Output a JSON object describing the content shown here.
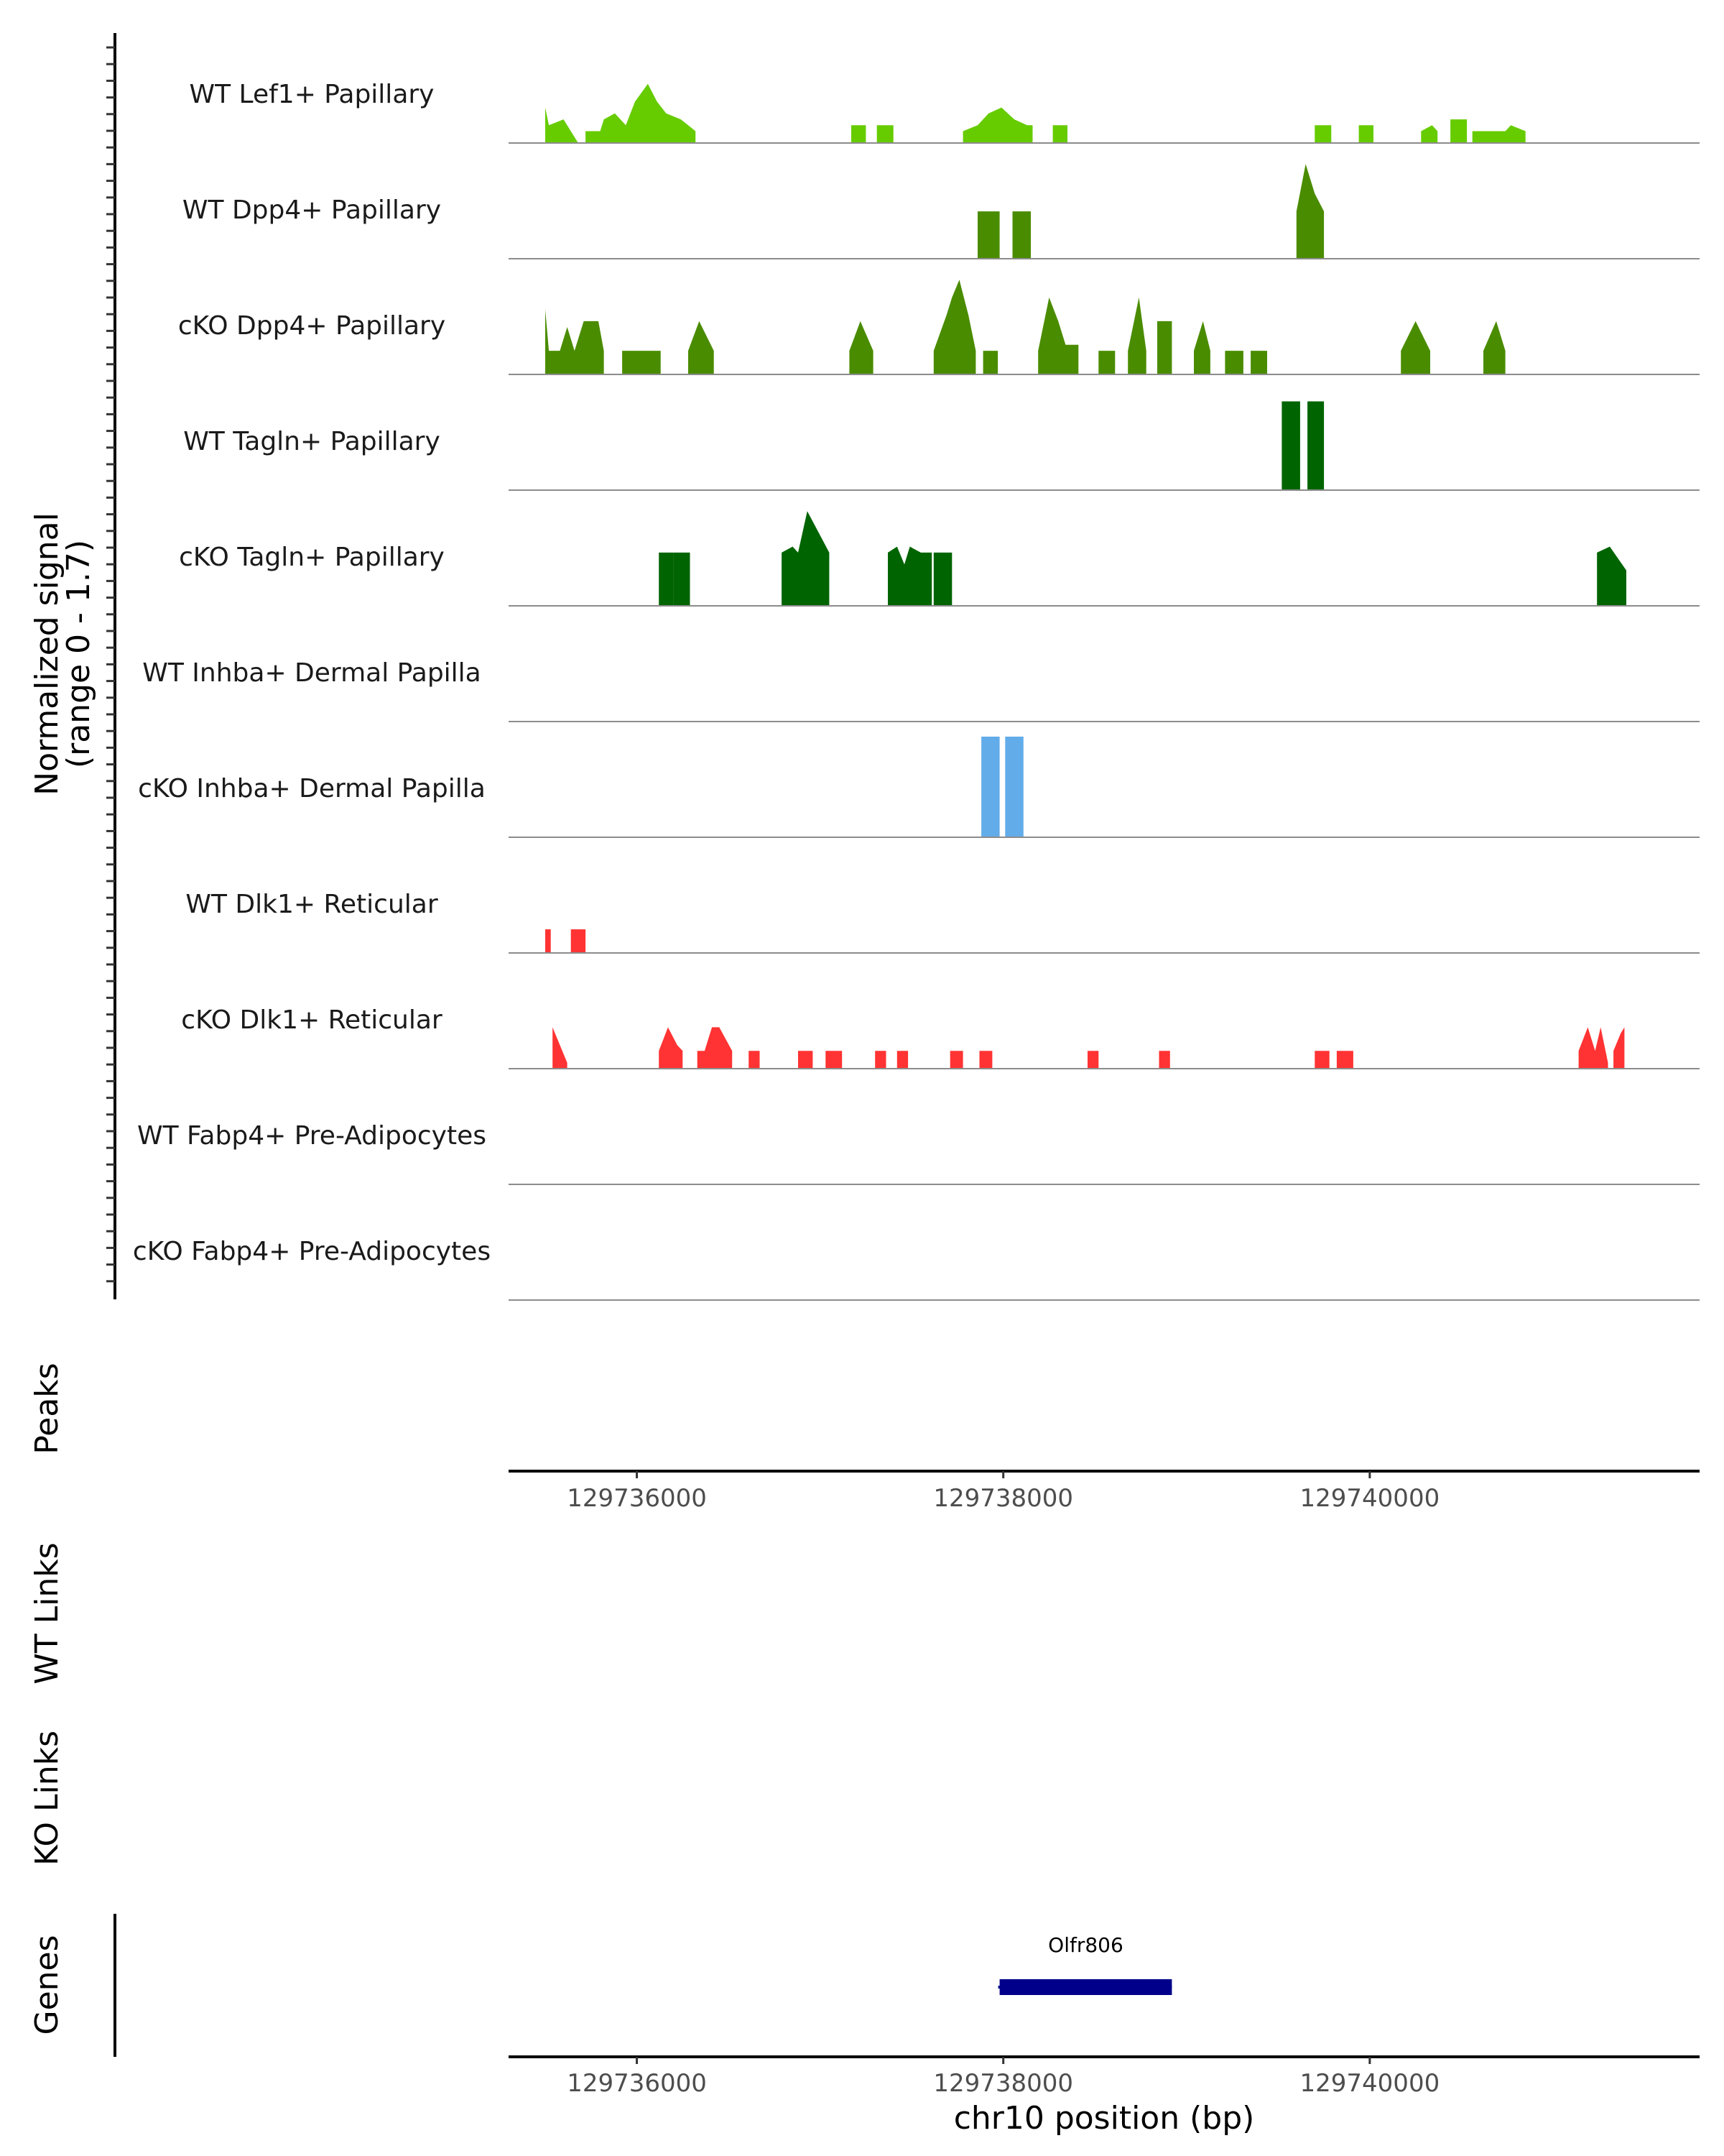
{
  "chart_data": {
    "type": "area",
    "title": "",
    "chromosome": "chr10",
    "xlabel": "chr10 position (bp)",
    "xlim": [
      129735300,
      129741800
    ],
    "x_ticks": [
      129736000,
      129738000,
      129740000
    ],
    "x_tick_labels": [
      "129736000",
      "129738000",
      "129740000"
    ],
    "coverage_ylabel_line1": "Normalized signal",
    "coverage_ylabel_line2": "(range 0 - 1.7)",
    "ylim": [
      0,
      1.7
    ],
    "panel_labels": {
      "peaks": "Peaks",
      "wt_links": "WT Links",
      "ko_links": "KO Links",
      "genes": "Genes"
    },
    "colors": {
      "lef1": "#66cc00",
      "dpp4": "#4a8c00",
      "tagln": "#006400",
      "inhba": "#63acea",
      "dlk1": "#ff3333",
      "gene": "#00008b"
    },
    "series": [
      {
        "name": "WT Lef1+ Papillary",
        "color": "#66cc00",
        "segments": [
          {
            "x": [
              129735500,
              129735520,
              129735600,
              129735680
            ],
            "y": [
              0.6,
              0.3,
              0.4,
              0.0
            ]
          },
          {
            "x": [
              129735720,
              129735800,
              129735820,
              129735880,
              129735940,
              129735990,
              129736060,
              129736110,
              129736160,
              129736240,
              129736280,
              129736320
            ],
            "y": [
              0.2,
              0.2,
              0.4,
              0.5,
              0.3,
              0.7,
              1.0,
              0.7,
              0.5,
              0.4,
              0.3,
              0.2
            ]
          },
          {
            "x": [
              129737170,
              129737250
            ],
            "y": [
              0.3,
              0.3
            ]
          },
          {
            "x": [
              129737310,
              129737400
            ],
            "y": [
              0.3,
              0.3
            ]
          },
          {
            "x": [
              129737780,
              129737860,
              129737920,
              129737990,
              129738060,
              129738130,
              129738160
            ],
            "y": [
              0.2,
              0.3,
              0.5,
              0.6,
              0.4,
              0.3,
              0.3
            ]
          },
          {
            "x": [
              129738270,
              129738350
            ],
            "y": [
              0.3,
              0.3
            ]
          },
          {
            "x": [
              129739700,
              129739790
            ],
            "y": [
              0.3,
              0.3
            ]
          },
          {
            "x": [
              129739940,
              129740020
            ],
            "y": [
              0.3,
              0.3
            ]
          },
          {
            "x": [
              129740280,
              129740340,
              129740370
            ],
            "y": [
              0.2,
              0.3,
              0.2
            ]
          },
          {
            "x": [
              129740440,
              129740530
            ],
            "y": [
              0.4,
              0.4
            ]
          },
          {
            "x": [
              129740560,
              129740740,
              129740770,
              129740850
            ],
            "y": [
              0.2,
              0.2,
              0.3,
              0.2
            ]
          }
        ]
      },
      {
        "name": "WT Dpp4+ Papillary",
        "color": "#4a8c00",
        "segments": [
          {
            "x": [
              129737860,
              129737980
            ],
            "y": [
              0.8,
              0.8
            ]
          },
          {
            "x": [
              129738050,
              129738150
            ],
            "y": [
              0.8,
              0.8
            ]
          },
          {
            "x": [
              129739600,
              129739650,
              129739700,
              129739750
            ],
            "y": [
              0.8,
              1.6,
              1.1,
              0.8
            ]
          }
        ]
      },
      {
        "name": "cKO Dpp4+ Papillary",
        "color": "#4a8c00",
        "segments": [
          {
            "x": [
              129735500,
              129735520,
              129735580,
              129735620,
              129735660,
              129735710,
              129735790,
              129735820
            ],
            "y": [
              1.1,
              0.4,
              0.4,
              0.8,
              0.4,
              0.9,
              0.9,
              0.4
            ]
          },
          {
            "x": [
              129735920,
              129736130
            ],
            "y": [
              0.4,
              0.4
            ]
          },
          {
            "x": [
              129736280,
              129736340,
              129736420
            ],
            "y": [
              0.4,
              0.9,
              0.4
            ]
          },
          {
            "x": [
              129737160,
              129737220,
              129737290
            ],
            "y": [
              0.4,
              0.9,
              0.4
            ]
          },
          {
            "x": [
              129737620,
              129737690,
              129737720,
              129737760,
              129737810,
              129737850
            ],
            "y": [
              0.4,
              1.0,
              1.3,
              1.6,
              1.0,
              0.4
            ]
          },
          {
            "x": [
              129737890,
              129737970
            ],
            "y": [
              0.4,
              0.4
            ]
          },
          {
            "x": [
              129738190,
              129738250,
              129738300,
              129738340,
              129738410
            ],
            "y": [
              0.4,
              1.3,
              0.9,
              0.5,
              0.5
            ]
          },
          {
            "x": [
              129738520,
              129738610
            ],
            "y": [
              0.4,
              0.4
            ]
          },
          {
            "x": [
              129738680,
              129738740,
              129738780
            ],
            "y": [
              0.4,
              1.3,
              0.4
            ]
          },
          {
            "x": [
              129738840,
              129738920
            ],
            "y": [
              0.9,
              0.9
            ]
          },
          {
            "x": [
              129739040,
              129739090,
              129739130
            ],
            "y": [
              0.4,
              0.9,
              0.4
            ]
          },
          {
            "x": [
              129739210,
              129739310
            ],
            "y": [
              0.4,
              0.4
            ]
          },
          {
            "x": [
              129739350,
              129739440
            ],
            "y": [
              0.4,
              0.4
            ]
          },
          {
            "x": [
              129740170,
              129740250,
              129740330
            ],
            "y": [
              0.4,
              0.9,
              0.4
            ]
          },
          {
            "x": [
              129740620,
              129740690,
              129740740
            ],
            "y": [
              0.4,
              0.9,
              0.4
            ]
          }
        ]
      },
      {
        "name": "WT Tagln+ Papillary",
        "color": "#006400",
        "segments": [
          {
            "x": [
              129739520,
              129739620
            ],
            "y": [
              1.5,
              1.5
            ]
          },
          {
            "x": [
              129739660,
              129739750
            ],
            "y": [
              1.5,
              1.5
            ]
          }
        ]
      },
      {
        "name": "cKO Tagln+ Papillary",
        "color": "#006400",
        "segments": [
          {
            "x": [
              129736120,
              129736200
            ],
            "y": [
              0.9,
              0.9
            ]
          },
          {
            "x": [
              129736200,
              129736290
            ],
            "y": [
              0.9,
              0.9
            ]
          },
          {
            "x": [
              129736790,
              129736850,
              129736880,
              129736930,
              129737050
            ],
            "y": [
              0.9,
              1.0,
              0.9,
              1.6,
              0.9
            ]
          },
          {
            "x": [
              129737370,
              129737420,
              129737460,
              129737490,
              129737550,
              129737610
            ],
            "y": [
              0.9,
              1.0,
              0.7,
              1.0,
              0.9,
              0.9
            ]
          },
          {
            "x": [
              129737620,
              129737720
            ],
            "y": [
              0.9,
              0.9
            ]
          },
          {
            "x": [
              129741240,
              129741310,
              129741400
            ],
            "y": [
              0.9,
              1.0,
              0.6
            ]
          }
        ]
      },
      {
        "name": "WT Inhba+ Dermal Papilla",
        "color": "#63acea",
        "segments": []
      },
      {
        "name": "cKO Inhba+ Dermal Papilla",
        "color": "#63acea",
        "segments": [
          {
            "x": [
              129737880,
              129737980
            ],
            "y": [
              1.7,
              1.7
            ]
          },
          {
            "x": [
              129738010,
              129738110
            ],
            "y": [
              1.7,
              1.7
            ]
          }
        ]
      },
      {
        "name": "WT Dlk1+ Reticular",
        "color": "#ff3333",
        "segments": [
          {
            "x": [
              129735500,
              129735530
            ],
            "y": [
              0.4,
              0.4
            ]
          },
          {
            "x": [
              129735640,
              129735720
            ],
            "y": [
              0.4,
              0.4
            ]
          }
        ]
      },
      {
        "name": "cKO Dlk1+ Reticular",
        "color": "#ff3333",
        "segments": [
          {
            "x": [
              129735540,
              129735620
            ],
            "y": [
              0.7,
              0.1
            ]
          },
          {
            "x": [
              129736120,
              129736170,
              129736220,
              129736250
            ],
            "y": [
              0.3,
              0.7,
              0.4,
              0.3
            ]
          },
          {
            "x": [
              129736330,
              129736370,
              129736410,
              129736450,
              129736520
            ],
            "y": [
              0.3,
              0.3,
              0.7,
              0.7,
              0.3
            ]
          },
          {
            "x": [
              129736610,
              129736670
            ],
            "y": [
              0.3,
              0.3
            ]
          },
          {
            "x": [
              129736880,
              129736960
            ],
            "y": [
              0.3,
              0.3
            ]
          },
          {
            "x": [
              129737030,
              129737120
            ],
            "y": [
              0.3,
              0.3
            ]
          },
          {
            "x": [
              129737300,
              129737360
            ],
            "y": [
              0.3,
              0.3
            ]
          },
          {
            "x": [
              129737420,
              129737480
            ],
            "y": [
              0.3,
              0.3
            ]
          },
          {
            "x": [
              129737710,
              129737780
            ],
            "y": [
              0.3,
              0.3
            ]
          },
          {
            "x": [
              129737870,
              129737940
            ],
            "y": [
              0.3,
              0.3
            ]
          },
          {
            "x": [
              129738460,
              129738520
            ],
            "y": [
              0.3,
              0.3
            ]
          },
          {
            "x": [
              129738850,
              129738910
            ],
            "y": [
              0.3,
              0.3
            ]
          },
          {
            "x": [
              129739700,
              129739780
            ],
            "y": [
              0.3,
              0.3
            ]
          },
          {
            "x": [
              129739820,
              129739910
            ],
            "y": [
              0.3,
              0.3
            ]
          },
          {
            "x": [
              129741140,
              129741190,
              129741230,
              129741260,
              129741300
            ],
            "y": [
              0.3,
              0.7,
              0.3,
              0.7,
              0.1
            ]
          },
          {
            "x": [
              129741330,
              129741370,
              129741390
            ],
            "y": [
              0.3,
              0.6,
              0.7
            ]
          }
        ]
      },
      {
        "name": "WT Fabp4+ Pre-Adipocytes",
        "color": "#ff3333",
        "segments": []
      },
      {
        "name": "cKO Fabp4+ Pre-Adipocytes",
        "color": "#ff3333",
        "segments": []
      }
    ],
    "genes": [
      {
        "name": "Olfr806",
        "start": 129737980,
        "end": 129738920,
        "color": "#00008b"
      }
    ]
  }
}
